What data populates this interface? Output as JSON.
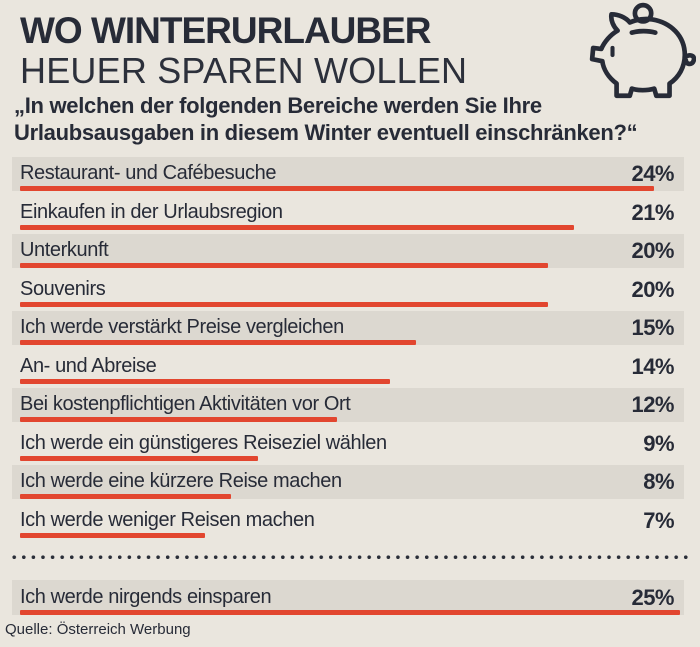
{
  "header": {
    "title_line1": "WO WINTERURLAUBER",
    "title_line2": "HEUER SPAREN WOLLEN",
    "subtitle_line1": "„In welchen der folgenden Bereiche werden Sie Ihre",
    "subtitle_line2": "Urlaubsausgaben in diesem Winter eventuell einschränken?“",
    "icon": "piggy-bank-icon"
  },
  "chart_data": {
    "type": "bar",
    "orientation": "horizontal",
    "title": "WO WINTERURLAUBER HEUER SPAREN WOLLEN",
    "subtitle": "„In welchen der folgenden Bereiche werden Sie Ihre Urlaubsausgaben in diesem Winter eventuell einschränken?“",
    "unit": "%",
    "categories": [
      "Restaurant- und Cafébesuche",
      "Einkaufen in der Urlaubsregion",
      "Unterkunft",
      "Souvenirs",
      "Ich werde verstärkt Preise vergleichen",
      "An- und Abreise",
      "Bei kostenpflichtigen Aktivitäten vor Ort",
      "Ich werde ein günstigeres Reiseziel wählen",
      "Ich werde eine kürzere Reise machen",
      "Ich werde weniger Reisen machen",
      "Ich werde  nirgends einsparen"
    ],
    "values": [
      24,
      21,
      20,
      20,
      15,
      14,
      12,
      9,
      8,
      7,
      25
    ],
    "pct_labels": [
      "24%",
      "21%",
      "20%",
      "20%",
      "15%",
      "14%",
      "12%",
      "9%",
      "8%",
      "7%",
      "25%"
    ],
    "xlim": [
      0,
      25
    ],
    "bar_color": "#e2462f",
    "legend": "none",
    "grid": false,
    "note": "last category separated from the rest by a dotted divider",
    "source": "Quelle: Österreich Werbung"
  },
  "source": "Quelle: Österreich Werbung",
  "colors": {
    "background": "#eae6de",
    "row_band": "#dcd8d0",
    "accent_red": "#e2462f",
    "text_dark": "#272b37"
  }
}
